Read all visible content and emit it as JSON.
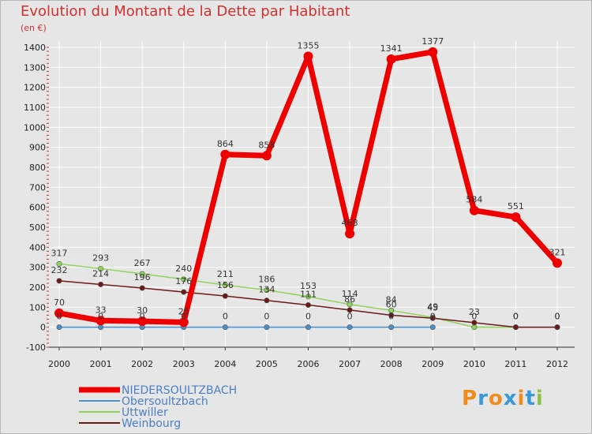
{
  "title": "Evolution du Montant de la Dette par Habitant",
  "subtitle": "(en €)",
  "logo": {
    "letters": [
      "P",
      "r",
      "o",
      "x",
      "i",
      "t",
      "i"
    ],
    "colors": [
      "#f08c1e",
      "#3a9ad9",
      "#f08c1e",
      "#3a9ad9",
      "#f08c1e",
      "#3a9ad9",
      "#8bc34a"
    ]
  },
  "chart_data": {
    "type": "line",
    "title": "Evolution du Montant de la Dette par Habitant",
    "ylabel": "(en €)",
    "xlabel": "",
    "ylim": [
      -100,
      1400
    ],
    "yticks": [
      -100,
      0,
      100,
      200,
      300,
      400,
      500,
      600,
      700,
      800,
      900,
      1000,
      1100,
      1200,
      1300,
      1400
    ],
    "categories": [
      "2000",
      "2001",
      "2002",
      "2003",
      "2004",
      "2005",
      "2006",
      "2007",
      "2008",
      "2009",
      "2010",
      "2011",
      "2012"
    ],
    "series": [
      {
        "name": "NIEDERSOULTZBACH",
        "color": "#ee0000",
        "values": [
          70,
          33,
          30,
          25,
          864,
          858,
          1355,
          468,
          1341,
          1377,
          584,
          551,
          321
        ],
        "labels": [
          "70",
          "33",
          "30",
          "25",
          "864",
          "858",
          "1355",
          "468",
          "1341",
          "1377",
          "584",
          "551",
          "321"
        ]
      },
      {
        "name": "Obersoultzbach",
        "color": "#4a8fc8",
        "values": [
          0,
          0,
          0,
          0,
          0,
          0,
          0,
          0,
          0,
          0,
          null,
          null,
          null
        ],
        "labels": [
          "0",
          "0",
          "0",
          "0",
          "0",
          "0",
          "0",
          "0",
          "0",
          "0",
          "",
          "",
          ""
        ]
      },
      {
        "name": "Uttwiller",
        "color": "#8fd45a",
        "values": [
          317,
          293,
          267,
          240,
          211,
          186,
          153,
          114,
          84,
          49,
          0,
          0,
          0
        ],
        "labels": [
          "317",
          "293",
          "267",
          "240",
          "211",
          "186",
          "153",
          "114",
          "84",
          "49",
          "0",
          "0",
          "0"
        ]
      },
      {
        "name": "Weinbourg",
        "color": "#6b1a1a",
        "values": [
          232,
          214,
          196,
          176,
          156,
          134,
          111,
          86,
          60,
          45,
          23,
          0,
          0
        ],
        "labels": [
          "232",
          "214",
          "196",
          "176",
          "156",
          "134",
          "111",
          "86",
          "60",
          "45",
          "23",
          "0",
          "0"
        ]
      }
    ]
  }
}
